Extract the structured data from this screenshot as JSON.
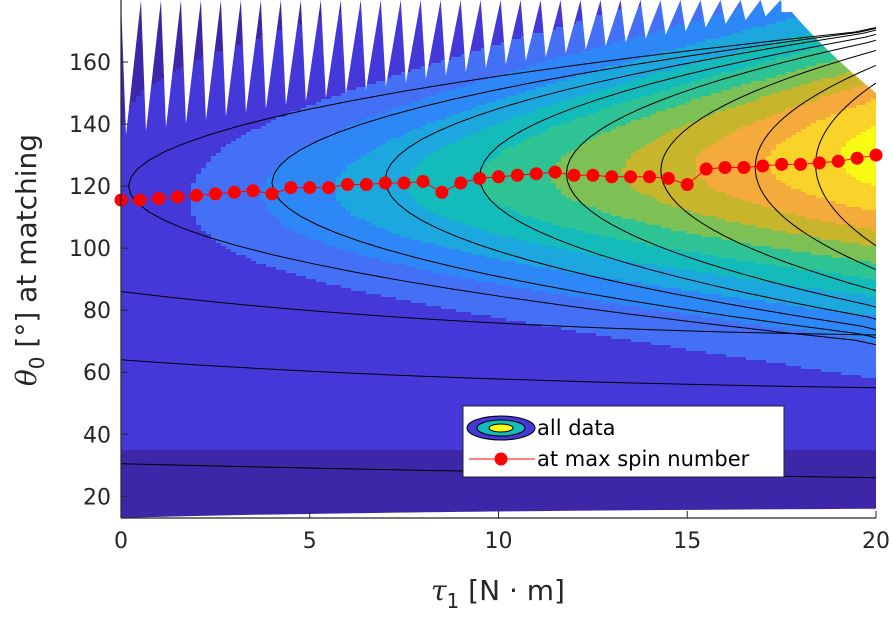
{
  "chart_data": {
    "type": "contour-with-line",
    "xlabel": "τ₁ [N · m]",
    "ylabel": "θ₀ [°] at matching",
    "xlim": [
      0,
      20
    ],
    "ylim": [
      13,
      180
    ],
    "x_ticks": [
      "0",
      "5",
      "10",
      "15",
      "20"
    ],
    "y_ticks": [
      "20",
      "40",
      "60",
      "80",
      "100",
      "120",
      "140",
      "160"
    ],
    "x_tick_values": [
      0,
      5,
      10,
      15,
      20
    ],
    "y_tick_values": [
      20,
      40,
      60,
      80,
      100,
      120,
      140,
      160
    ],
    "colormap": [
      "#3e26a8",
      "#4538d9",
      "#4470f5",
      "#2e87f7",
      "#1ca8de",
      "#14bbbb",
      "#2dc394",
      "#7dc055",
      "#c7b52b",
      "#f4ab3c",
      "#f9d22a",
      "#f9fb15"
    ],
    "grid": false,
    "legend": {
      "placement": "lower-right",
      "entries": [
        {
          "label": "all data",
          "kind": "contour"
        },
        {
          "label": "at max spin number",
          "kind": "line-marker",
          "color": "#ff0000"
        }
      ]
    },
    "series": [
      {
        "name": "at max spin number",
        "color": "#ff0000",
        "x": [
          0,
          0.5,
          1,
          1.5,
          2,
          2.5,
          3,
          3.5,
          4,
          4.5,
          5,
          5.5,
          6,
          6.5,
          7,
          7.5,
          8,
          8.5,
          9,
          9.5,
          10,
          10.5,
          11,
          11.5,
          12,
          12.5,
          13,
          13.5,
          14,
          14.5,
          15,
          15.5,
          16,
          16.5,
          17,
          17.5,
          18,
          18.5,
          19,
          19.5,
          20
        ],
        "y": [
          115.5,
          115.5,
          116,
          116.5,
          117,
          117.5,
          118,
          118.5,
          117.5,
          119.5,
          119.5,
          119.5,
          120.5,
          120.5,
          121,
          121,
          121.5,
          118,
          121,
          122.5,
          123,
          123.5,
          124,
          124.5,
          123.5,
          123.5,
          123,
          123,
          123,
          122.5,
          120.5,
          125.5,
          126,
          126,
          126.5,
          127,
          127,
          127.5,
          128,
          129,
          130
        ]
      }
    ]
  }
}
